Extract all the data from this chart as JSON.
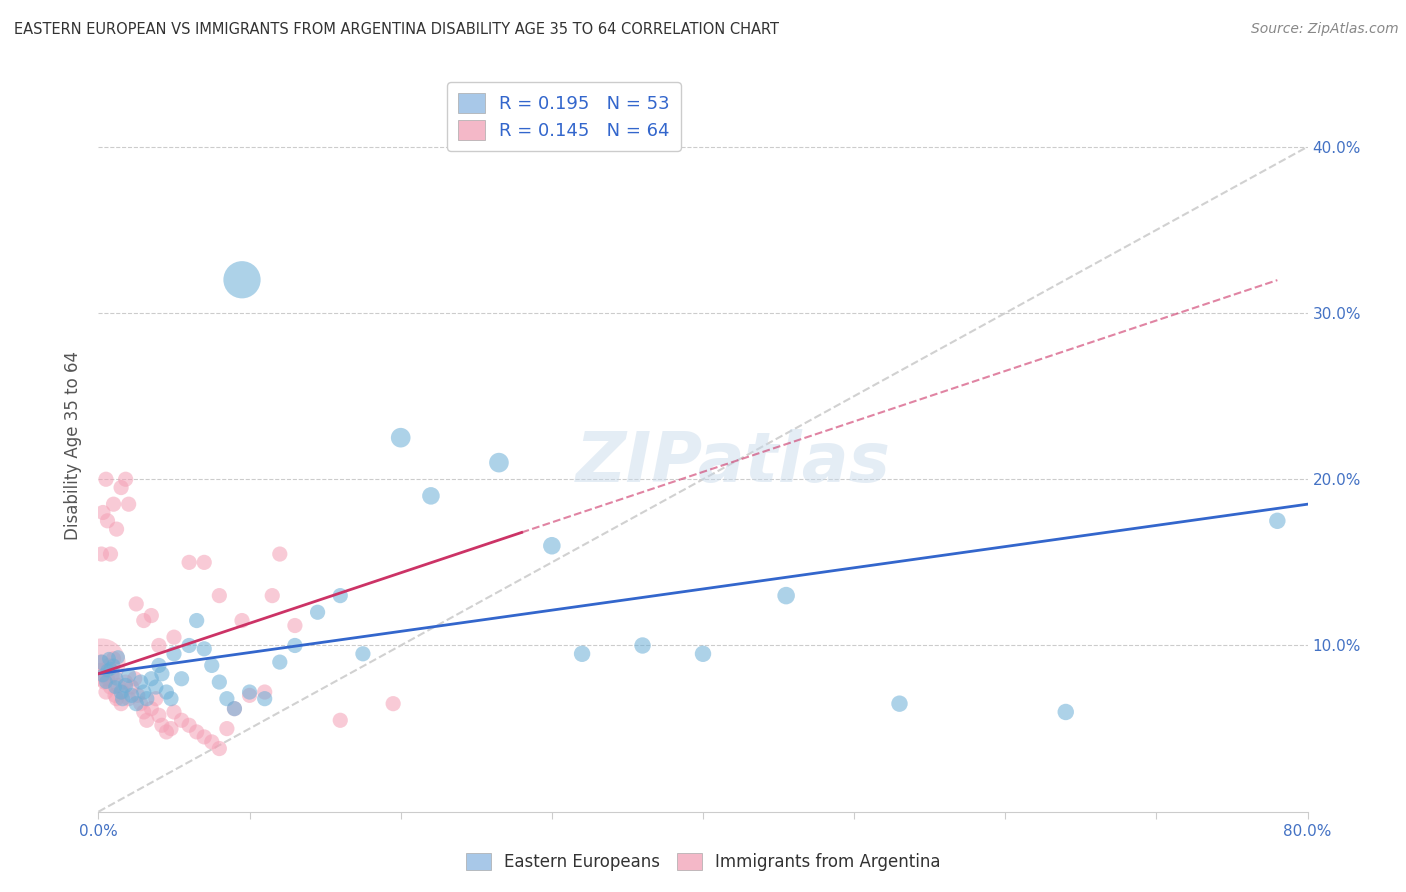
{
  "title": "EASTERN EUROPEAN VS IMMIGRANTS FROM ARGENTINA DISABILITY AGE 35 TO 64 CORRELATION CHART",
  "source": "Source: ZipAtlas.com",
  "ylabel": "Disability Age 35 to 64",
  "xlim": [
    0.0,
    0.8
  ],
  "ylim": [
    0.0,
    0.44
  ],
  "blue_color": "#6baed6",
  "pink_color": "#f4a0b5",
  "trend_blue_color": "#3366cc",
  "trend_pink_color": "#cc3366",
  "diag_color": "#cccccc",
  "watermark": "ZIPatlas",
  "legend1_color": "#a8c8e8",
  "legend2_color": "#f4b8c8",
  "blue_trend": [
    0.0,
    0.083,
    0.8,
    0.185
  ],
  "pink_trend": [
    0.0,
    0.083,
    0.28,
    0.168
  ],
  "blue_x": [
    0.002,
    0.003,
    0.005,
    0.006,
    0.007,
    0.008,
    0.01,
    0.011,
    0.012,
    0.013,
    0.015,
    0.016,
    0.018,
    0.02,
    0.022,
    0.025,
    0.028,
    0.03,
    0.032,
    0.035,
    0.038,
    0.04,
    0.042,
    0.045,
    0.048,
    0.05,
    0.055,
    0.06,
    0.065,
    0.07,
    0.075,
    0.08,
    0.085,
    0.09,
    0.1,
    0.11,
    0.12,
    0.13,
    0.145,
    0.16,
    0.175,
    0.2,
    0.22,
    0.265,
    0.3,
    0.36,
    0.4,
    0.455,
    0.53,
    0.64,
    0.78,
    0.32,
    0.095
  ],
  "blue_y": [
    0.09,
    0.082,
    0.078,
    0.085,
    0.092,
    0.086,
    0.088,
    0.075,
    0.08,
    0.093,
    0.072,
    0.068,
    0.076,
    0.082,
    0.07,
    0.065,
    0.078,
    0.072,
    0.068,
    0.08,
    0.075,
    0.088,
    0.083,
    0.072,
    0.068,
    0.095,
    0.08,
    0.1,
    0.115,
    0.098,
    0.088,
    0.078,
    0.068,
    0.062,
    0.072,
    0.068,
    0.09,
    0.1,
    0.12,
    0.13,
    0.095,
    0.225,
    0.19,
    0.21,
    0.16,
    0.1,
    0.095,
    0.13,
    0.065,
    0.06,
    0.175,
    0.095,
    0.32
  ],
  "blue_sizes": [
    30,
    25,
    25,
    25,
    25,
    25,
    25,
    25,
    25,
    25,
    30,
    30,
    30,
    30,
    30,
    30,
    30,
    30,
    30,
    30,
    30,
    30,
    30,
    30,
    30,
    30,
    30,
    30,
    30,
    30,
    30,
    30,
    30,
    30,
    30,
    30,
    30,
    30,
    30,
    30,
    30,
    50,
    40,
    50,
    40,
    35,
    35,
    40,
    35,
    35,
    35,
    35,
    180
  ],
  "pink_x": [
    0.001,
    0.002,
    0.003,
    0.004,
    0.005,
    0.006,
    0.007,
    0.008,
    0.009,
    0.01,
    0.011,
    0.012,
    0.013,
    0.015,
    0.016,
    0.018,
    0.02,
    0.022,
    0.024,
    0.026,
    0.028,
    0.03,
    0.032,
    0.035,
    0.038,
    0.04,
    0.042,
    0.045,
    0.048,
    0.05,
    0.055,
    0.06,
    0.065,
    0.07,
    0.075,
    0.08,
    0.085,
    0.09,
    0.1,
    0.11,
    0.115,
    0.13,
    0.16,
    0.195,
    0.002,
    0.003,
    0.005,
    0.006,
    0.008,
    0.01,
    0.012,
    0.015,
    0.018,
    0.02,
    0.025,
    0.03,
    0.035,
    0.04,
    0.05,
    0.06,
    0.07,
    0.08,
    0.095,
    0.12
  ],
  "pink_y": [
    0.085,
    0.09,
    0.082,
    0.078,
    0.072,
    0.08,
    0.088,
    0.075,
    0.082,
    0.092,
    0.07,
    0.068,
    0.076,
    0.065,
    0.072,
    0.078,
    0.068,
    0.075,
    0.08,
    0.07,
    0.065,
    0.06,
    0.055,
    0.062,
    0.068,
    0.058,
    0.052,
    0.048,
    0.05,
    0.06,
    0.055,
    0.052,
    0.048,
    0.045,
    0.042,
    0.038,
    0.05,
    0.062,
    0.07,
    0.072,
    0.13,
    0.112,
    0.055,
    0.065,
    0.155,
    0.18,
    0.2,
    0.175,
    0.155,
    0.185,
    0.17,
    0.195,
    0.2,
    0.185,
    0.125,
    0.115,
    0.118,
    0.1,
    0.105,
    0.15,
    0.15,
    0.13,
    0.115,
    0.155
  ],
  "pink_sizes": [
    30,
    30,
    30,
    30,
    30,
    30,
    30,
    30,
    30,
    30,
    30,
    30,
    30,
    30,
    30,
    30,
    30,
    30,
    30,
    30,
    30,
    30,
    30,
    30,
    30,
    30,
    30,
    30,
    30,
    30,
    30,
    30,
    30,
    30,
    30,
    30,
    30,
    30,
    30,
    30,
    30,
    30,
    30,
    30,
    30,
    30,
    30,
    30,
    30,
    30,
    30,
    30,
    30,
    30,
    30,
    30,
    30,
    30,
    30,
    30,
    30,
    30,
    30,
    30
  ]
}
